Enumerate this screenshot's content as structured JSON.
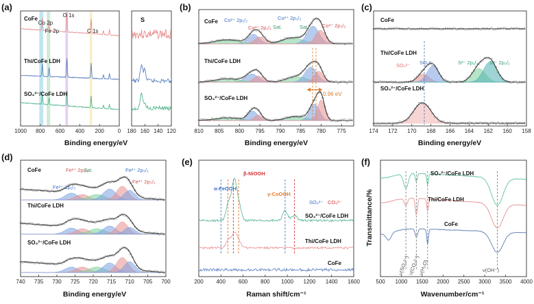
{
  "chart_data": [
    {
      "panel": "(a)",
      "type": "line",
      "xlabel": "Binding energy/eV",
      "subplots": [
        {
          "x_ticks": [
            1000,
            800,
            600,
            400,
            200,
            0
          ],
          "xlim": [
            1000,
            0
          ],
          "sample_labels": [
            "CoFe",
            "Thi/CoFe LDH",
            "SO₄²⁻/CoFe LDH"
          ],
          "series_colors": [
            "#e88f8f",
            "#5b7fc0",
            "#4fb48a"
          ],
          "peak_labels": [
            {
              "text": "Co 2p",
              "x": 780
            },
            {
              "text": "Fe 2p",
              "x": 711
            },
            {
              "text": "O 1s",
              "x": 531
            },
            {
              "text": "C 1s",
              "x": 285
            }
          ],
          "shaded_regions": [
            {
              "x": [
                810,
                770
              ],
              "color": "#9ed7e6"
            },
            {
              "x": [
                735,
                700
              ],
              "color": "#b6e0c2"
            },
            {
              "x": [
                545,
                520
              ],
              "color": "#d7b6e6"
            },
            {
              "x": [
                300,
                275
              ],
              "color": "#f3e6a8"
            }
          ]
        },
        {
          "title": "S",
          "x_ticks": [
            180,
            160,
            140,
            120
          ],
          "xlim": [
            180,
            120
          ]
        }
      ]
    },
    {
      "panel": "(b)",
      "type": "line",
      "xlabel": "Binding energy/eV",
      "x_ticks": [
        810,
        805,
        800,
        795,
        790,
        785,
        780,
        775
      ],
      "xlim": [
        810,
        772
      ],
      "sample_labels": [
        "CoFe",
        "Thi/CoFe LDH",
        "SO₄²⁻/CoFe LDH"
      ],
      "annotations": [
        "Co²⁺ 2p₁/₂",
        "Co³⁺ 2p₁/₂",
        "Sat.",
        "Co²⁺ 2p₃/₂",
        "Sat.",
        "Co³⁺ 2p₃/₂"
      ],
      "shift": "0.96 eV",
      "peak_positions": [
        796.8,
        795.4,
        787.5,
        782.1,
        785.5,
        780.5
      ]
    },
    {
      "panel": "(c)",
      "type": "line",
      "xlabel": "Binding energy/eV",
      "x_ticks": [
        174,
        172,
        170,
        168,
        166,
        164,
        162,
        160,
        158
      ],
      "xlim": [
        174,
        158
      ],
      "sample_labels": [
        "CoFe",
        "Thi/CoFe LDH",
        "SO₄²⁻/CoFe LDH"
      ],
      "annotations": [
        "SO₄²⁻",
        "SO₃²⁻",
        "S²⁻ 2p₁/₂",
        "S²⁻ 2p₃/₂"
      ],
      "peak_positions": [
        168.8,
        167.8,
        163.0,
        161.8
      ]
    },
    {
      "panel": "(d)",
      "type": "line",
      "xlabel": "Binding energy/eV",
      "x_ticks": [
        740,
        735,
        730,
        725,
        720,
        715,
        710,
        705,
        700
      ],
      "xlim": [
        740,
        700
      ],
      "sample_labels": [
        "CoFe",
        "Thi/CoFe LDH",
        "SO₄²⁻/CoFe LDH"
      ],
      "annotations": [
        "Fe²⁺ 2p₁/₂",
        "Sat.",
        "Fe³⁺ 2p₁/₂",
        "Fe²⁺ 2p₃/₂",
        "Fe³⁺ 2p₃/₂"
      ],
      "peak_positions": [
        724.0,
        719.0,
        726.0,
        710.0,
        712.5
      ]
    },
    {
      "panel": "(e)",
      "type": "line",
      "xlabel": "Raman shift/cm⁻¹",
      "x_ticks": [
        200,
        400,
        600,
        800,
        1000,
        1200,
        1400,
        1600
      ],
      "xlim": [
        200,
        1600
      ],
      "sample_labels": [
        "SO₄²⁻/CoFe LDH",
        "Thi/CoFe LDH",
        "CoFe"
      ],
      "annotations": [
        "α-FeOOH",
        "β-NiOOH",
        "γ-CoOOH",
        "SO₄²⁻",
        "CO₃²⁻"
      ],
      "marker_lines": [
        {
          "x": 400,
          "color": "#4a78c8"
        },
        {
          "x": 463,
          "color": "#e07b2a"
        },
        {
          "x": 512,
          "color": "#d63030"
        },
        {
          "x": 560,
          "color": "#e07b2a"
        },
        {
          "x": 980,
          "color": "#4a78c8"
        },
        {
          "x": 1065,
          "color": "#d63030"
        }
      ]
    },
    {
      "panel": "(f)",
      "type": "line",
      "xlabel": "Wavenumber/cm⁻¹",
      "ylabel": "Transmittance/%",
      "x_ticks": [
        500,
        1000,
        1500,
        2000,
        2500,
        3000,
        3500,
        4000
      ],
      "xlim": [
        500,
        4000
      ],
      "sample_labels": [
        "SO₄²⁻/CoFe LDH",
        "Thi/CoFe LDH",
        "CoFe"
      ],
      "series_colors": [
        "#6cc9a0",
        "#e89a9a",
        "#6a86b8"
      ],
      "annotations": [
        "ν(SO₄²⁻)",
        "ν(CO₃²⁻)",
        "ν(H₂O)",
        "ν(OH⁻)"
      ],
      "marker_lines": [
        1110,
        1360,
        1630,
        3300
      ]
    }
  ]
}
